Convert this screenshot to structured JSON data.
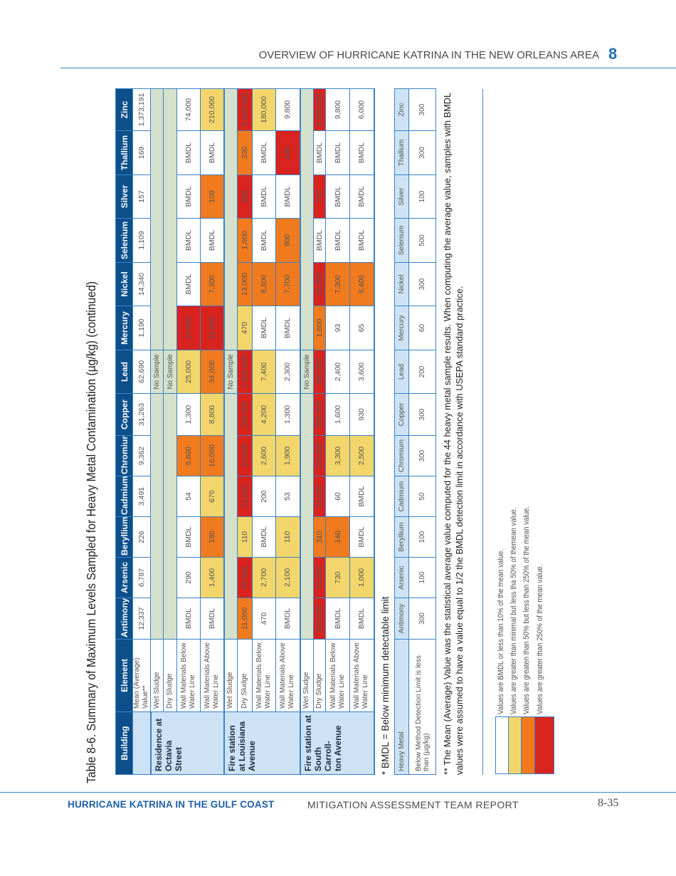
{
  "header": {
    "section": "OVERVIEW OF HURRICANE KATRINA IN THE NEW ORLEANS AREA",
    "chapter": "8"
  },
  "footer": {
    "left": "HURRICANE KATRINA IN THE GULF COAST",
    "center": "MITIGATION ASSESSMENT TEAM REPORT",
    "page": "8-35"
  },
  "title": "Table 8-6. Summary of Maximum Levels Sampled for Heavy Metal Contamination (µg/kg) (continued)",
  "colors": {
    "header_bg": "#0d4f8b",
    "building_bg": "#cde3f5",
    "no_sample_bg": "#d5e1cc",
    "border": "#3a82c4"
  },
  "main_table": {
    "building_header": "Building",
    "element_header": "Element",
    "metals": [
      "Antimony",
      "Arsenic",
      "Beryllium",
      "Cadmium",
      "Chromium",
      "Copper",
      "Lead",
      "Mercury",
      "Nickel",
      "Selenium",
      "Silver",
      "Thallium",
      "Zinc"
    ],
    "mean_row": {
      "label": "Mean (Average) Value**",
      "values": [
        "12,337",
        "6,787",
        "226",
        "3,491",
        "9,362",
        "31,263",
        "62,690",
        "1,190",
        "14,340",
        "1,109",
        "157",
        "169",
        "1,373,191"
      ]
    },
    "groups": [
      {
        "building": "Residence at\nOctavia Street",
        "rows": [
          {
            "element": "Wet Sludge",
            "no_sample": "No Sample"
          },
          {
            "element": "Dry Sludge",
            "no_sample": "No Sample"
          },
          {
            "element": "Wall Materials Below Water Line",
            "values": [
              "BMDL",
              "290",
              "BMDL",
              "54",
              "5,600",
              "1,300",
              "25,000",
              "10,000",
              "BMDL",
              "BMDL",
              "BMDL",
              "BMDL",
              "74,000"
            ],
            "levels": [
              0,
              0,
              0,
              0,
              2,
              0,
              1,
              3,
              0,
              0,
              0,
              0,
              0
            ]
          },
          {
            "element": "Wall Materials Above Water Line",
            "values": [
              "BMDL",
              "1,400",
              "180",
              "670",
              "16,000",
              "8,800",
              "34,000",
              "32,000",
              "7,300",
              "BMDL",
              "100",
              "BMDL",
              "210,000"
            ],
            "levels": [
              0,
              1,
              2,
              1,
              2,
              1,
              2,
              3,
              2,
              0,
              2,
              0,
              1
            ]
          }
        ]
      },
      {
        "building": "Fire station\nat Louisiana\nAvenue",
        "rows": [
          {
            "element": "Wet Sludge",
            "no_sample": "No Sample"
          },
          {
            "element": "Dry Sludge",
            "values": [
              "11,000",
              "45,000",
              "110",
              "22,000",
              "24,000",
              "200,000",
              "1,300,000",
              "470",
              "13,000",
              "1,000",
              "890",
              "330",
              "5,400,000"
            ],
            "levels": [
              2,
              3,
              1,
              3,
              3,
              3,
              3,
              1,
              2,
              2,
              3,
              2,
              3
            ]
          },
          {
            "element": "Wall Materials Below Water Line",
            "values": [
              "470",
              "2,700",
              "BMDL",
              "200",
              "2,600",
              "4,200",
              "7,400",
              "BMDL",
              "8,300",
              "BMDL",
              "BMDL",
              "BMDL",
              "180,000"
            ],
            "levels": [
              0,
              1,
              0,
              0,
              1,
              1,
              1,
              0,
              2,
              0,
              0,
              0,
              1
            ]
          },
          {
            "element": "Wall Materials Above Water Line",
            "values": [
              "BMDL",
              "2,100",
              "110",
              "53",
              "1,900",
              "1,300",
              "2,300",
              "BMDL",
              "7,700",
              "800",
              "BMDL",
              "430",
              "9,800"
            ],
            "levels": [
              0,
              1,
              1,
              0,
              1,
              0,
              0,
              0,
              2,
              2,
              0,
              3,
              0
            ]
          }
        ]
      },
      {
        "building": "Fire station at\nSouth Carroll-\nton Avenue",
        "rows": [
          {
            "element": "Wet Sludge",
            "no_sample": "No Sample"
          },
          {
            "element": "Dry Sludge",
            "values": [
              "330,000",
              "81,000",
              "310",
              "24,000",
              "100,000",
              "490,000",
              "390,000",
              "1,600",
              "44,000",
              "BMDL",
              "740",
              "BMDL",
              "8,500,000"
            ],
            "levels": [
              3,
              3,
              2,
              3,
              3,
              3,
              3,
              2,
              3,
              0,
              3,
              0,
              3
            ]
          },
          {
            "element": "Wall Materials Below Water Line",
            "values": [
              "BMDL",
              "730",
              "140",
              "60",
              "3,300",
              "1,600",
              "2,400",
              "93",
              "7,300",
              "BMDL",
              "BMDL",
              "BMDL",
              "9,800"
            ],
            "levels": [
              0,
              1,
              2,
              0,
              1,
              0,
              0,
              0,
              2,
              0,
              0,
              0,
              0
            ]
          },
          {
            "element": "Wall Materials Above Water Line",
            "values": [
              "BMDL",
              "1,000",
              "BMDL",
              "BMDL",
              "2,500",
              "930",
              "3,600",
              "65",
              "8,400",
              "BMDL",
              "BMDL",
              "BMDL",
              "6,000"
            ],
            "levels": [
              0,
              1,
              0,
              0,
              1,
              0,
              0,
              0,
              2,
              0,
              0,
              0,
              0
            ]
          }
        ]
      }
    ]
  },
  "bmdl_note": "* BMDL = Below minimum detectable limit",
  "limit_table": {
    "header": [
      "Heavy Metal",
      "Antimony",
      "Arsenic",
      "Beryllium",
      "Cadmium",
      "Chromium",
      "Copper",
      "Lead",
      "Mercury",
      "Nickel",
      "Selenium",
      "Silver",
      "Thallium",
      "Zinc"
    ],
    "row_label": "Below Method Detection Limit is less than (µg/kg)",
    "values": [
      "300",
      "100",
      "100",
      "50",
      "300",
      "300",
      "200",
      "60",
      "300",
      "500",
      "100",
      "300",
      "300"
    ]
  },
  "footnote": "** The Mean (Average) Value was the statistical average value computed for the 44 heavy metal sample results. When computing the average value, samples with BMDL values were assumed to have a value equal to 1/2 the BMDL detection limit in accordance with USEPA standard practice.",
  "legend": [
    {
      "label": "Values are BMDL or less than 10% of the mean value.",
      "color": "#ffffff"
    },
    {
      "label": "Values are greater than minimal but less tha 50% of themean value.",
      "color": "#f3d66b"
    },
    {
      "label": "Values are greaten than 50% but less than 250% of the mean value.",
      "color": "#f07a1e"
    },
    {
      "label": "Values are greater than 250% of the mean value.",
      "color": "#d9231f"
    }
  ]
}
